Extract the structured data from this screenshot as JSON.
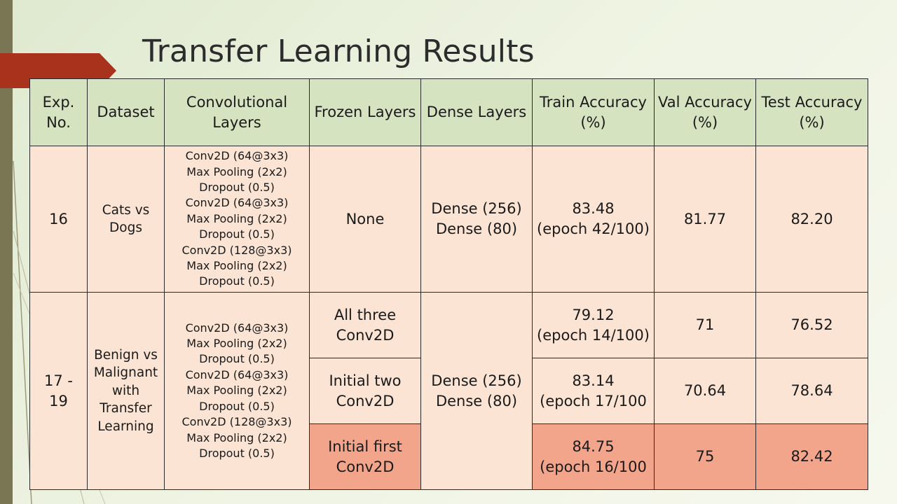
{
  "slide": {
    "title": "Transfer Learning Results"
  },
  "table": {
    "headers": [
      "Exp. No.",
      "Dataset",
      "Convolutional Layers",
      "Frozen Layers",
      "Dense Layers",
      "Train Accuracy (%)",
      "Val Accuracy (%)",
      "Test Accuracy (%)"
    ],
    "exp16": {
      "exp_no": "16",
      "dataset": "Cats vs Dogs",
      "conv_layers": [
        "Conv2D (64@3x3)",
        "Max Pooling (2x2)",
        "Dropout (0.5)",
        "Conv2D (64@3x3)",
        "Max Pooling (2x2)",
        "Dropout (0.5)",
        "Conv2D (128@3x3)",
        "Max Pooling (2x2)",
        "Dropout (0.5)"
      ],
      "frozen": "None",
      "dense": [
        "Dense (256)",
        "Dense (80)"
      ],
      "train_acc": "83.48",
      "train_epoch": "(epoch 42/100)",
      "val_acc": "81.77",
      "test_acc": "82.20"
    },
    "exp17_19": {
      "exp_no": "17 - 19",
      "dataset": "Benign vs Malignant with Transfer Learning",
      "conv_layers": [
        "Conv2D (64@3x3)",
        "Max Pooling (2x2)",
        "Dropout (0.5)",
        "Conv2D (64@3x3)",
        "Max Pooling (2x2)",
        "Dropout (0.5)",
        "Conv2D (128@3x3)",
        "Max Pooling (2x2)",
        "Dropout (0.5)"
      ],
      "dense": [
        "Dense (256)",
        "Dense (80)"
      ],
      "variants": [
        {
          "frozen": "All three Conv2D",
          "train_acc": "79.12",
          "train_epoch": "(epoch 14/100)",
          "val_acc": "71",
          "test_acc": "76.52",
          "highlighted": false
        },
        {
          "frozen": "Initial two Conv2D",
          "train_acc": "83.14",
          "train_epoch": "(epoch 17/100",
          "val_acc": "70.64",
          "test_acc": "78.64",
          "highlighted": false
        },
        {
          "frozen": "Initial first Conv2D",
          "train_acc": "84.75",
          "train_epoch": "(epoch 16/100",
          "val_acc": "75",
          "test_acc": "82.42",
          "highlighted": true
        }
      ]
    }
  },
  "colors": {
    "header_bg": "#d6e3c0",
    "cell_bg": "#fbe4d4",
    "highlight_bg": "#f3a58c",
    "title_flag": "#a8321b",
    "left_bar": "#7a7653"
  }
}
